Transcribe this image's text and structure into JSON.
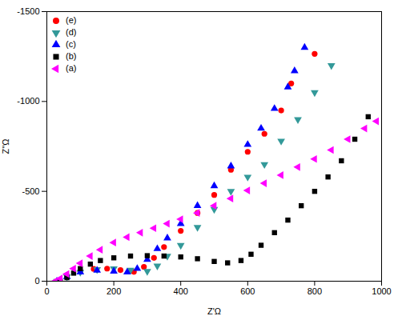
{
  "chart_data": {
    "type": "scatter",
    "x_label": "Z'Ω",
    "y_label": "Z''Ω",
    "xlim": [
      0,
      1000
    ],
    "xticks": [
      0,
      200,
      400,
      600,
      800,
      1000
    ],
    "ylim": [
      0,
      -1500
    ],
    "yticks": [
      0,
      -500,
      -1000,
      -1500
    ],
    "grid": false,
    "legend": "top-left",
    "series": [
      {
        "name": "(e)",
        "color": "#ff0000",
        "marker": "circle",
        "x": [
          30,
          60,
          100,
          140,
          180,
          220,
          260,
          290,
          320,
          350,
          400,
          450,
          500,
          550,
          600,
          650,
          700,
          730,
          800
        ],
        "values": [
          0,
          -30,
          -55,
          -68,
          -70,
          -62,
          -52,
          -80,
          -130,
          -190,
          -280,
          -380,
          -480,
          -620,
          -720,
          -820,
          -950,
          -1100,
          -1265
        ]
      },
      {
        "name": "(d)",
        "color": "#339999",
        "marker": "triangle-down",
        "x": [
          30,
          60,
          100,
          150,
          200,
          250,
          300,
          330,
          360,
          400,
          450,
          500,
          550,
          600,
          650,
          700,
          750,
          800,
          850
        ],
        "values": [
          0,
          -25,
          -50,
          -65,
          -70,
          -62,
          -55,
          -85,
          -140,
          -200,
          -300,
          -400,
          -500,
          -580,
          -650,
          -780,
          -900,
          -1050,
          -1200
        ]
      },
      {
        "name": "(c)",
        "color": "#0000ff",
        "marker": "triangle-up",
        "x": [
          30,
          60,
          100,
          150,
          200,
          240,
          270,
          300,
          330,
          360,
          400,
          450,
          500,
          550,
          600,
          640,
          680,
          720,
          740,
          770
        ],
        "values": [
          0,
          -25,
          -50,
          -60,
          -55,
          -50,
          -70,
          -120,
          -180,
          -240,
          -320,
          -420,
          -530,
          -640,
          -760,
          -850,
          -960,
          -1080,
          -1170,
          -1300
        ]
      },
      {
        "name": "(b)",
        "color": "#000000",
        "marker": "square",
        "x": [
          40,
          60,
          80,
          100,
          130,
          160,
          200,
          250,
          300,
          350,
          400,
          450,
          500,
          540,
          580,
          610,
          640,
          680,
          720,
          760,
          800,
          840,
          880,
          920,
          960
        ],
        "values": [
          0,
          -20,
          -45,
          -70,
          -95,
          -115,
          -130,
          -140,
          -142,
          -140,
          -135,
          -125,
          -110,
          -102,
          -115,
          -150,
          -200,
          -270,
          -340,
          -420,
          -500,
          -580,
          -670,
          -790,
          -915
        ]
      },
      {
        "name": "(a)",
        "color": "#ff00ff",
        "marker": "triangle-left",
        "x": [
          25,
          40,
          60,
          80,
          100,
          130,
          160,
          200,
          240,
          280,
          320,
          360,
          400,
          450,
          500,
          550,
          600,
          650,
          700,
          750,
          800,
          850,
          900,
          950,
          985
        ],
        "values": [
          0,
          -15,
          -40,
          -70,
          -100,
          -140,
          -175,
          -215,
          -245,
          -270,
          -295,
          -320,
          -345,
          -380,
          -420,
          -460,
          -505,
          -545,
          -590,
          -635,
          -680,
          -730,
          -790,
          -850,
          -890
        ]
      }
    ]
  }
}
